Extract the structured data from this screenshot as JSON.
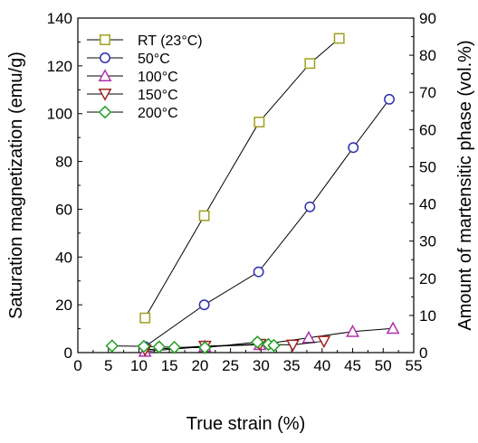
{
  "chart_data": {
    "type": "scatter",
    "xlabel": "True strain  (%)",
    "ylabel": "Saturation magnetization  (emu/g)",
    "y2label": "Amount of martensitic phase  (vol.%)",
    "xlim": [
      0,
      55
    ],
    "ylim": [
      0,
      140
    ],
    "y2lim": [
      0,
      90
    ],
    "xticks": [
      "0",
      "5",
      "10",
      "15",
      "20",
      "25",
      "30",
      "35",
      "40",
      "45",
      "50",
      "55"
    ],
    "yticks": [
      "0",
      "20",
      "40",
      "60",
      "80",
      "100",
      "120",
      "140"
    ],
    "y2ticks": [
      "0",
      "10",
      "20",
      "30",
      "40",
      "50",
      "60",
      "70",
      "80",
      "90"
    ],
    "grid": false,
    "legend_position": "top-left",
    "series": [
      {
        "name": "RT (23°C)",
        "color": "#a0a020",
        "marker": "square",
        "x": [
          11,
          20.7,
          29.7,
          38,
          42.8
        ],
        "y": [
          14.5,
          57.3,
          96.5,
          121,
          131.5
        ]
      },
      {
        "name": "50°C",
        "color": "#3030b0",
        "marker": "circle",
        "x": [
          11,
          20.7,
          29.6,
          38,
          45.1,
          51
        ],
        "y": [
          2.5,
          20,
          33.8,
          61,
          85.8,
          106
        ]
      },
      {
        "name": "100°C",
        "color": "#b030b0",
        "marker": "triangle-up",
        "x": [
          11,
          20.8,
          29.8,
          37.8,
          45,
          51.6
        ],
        "y": [
          0.5,
          2.5,
          3.3,
          6.2,
          8.8,
          10.1
        ]
      },
      {
        "name": "150°C",
        "color": "#a02020",
        "marker": "triangle-down",
        "x": [
          11,
          20.8,
          29.8,
          35.2,
          40.3
        ],
        "y": [
          1.2,
          2.7,
          3.5,
          3.2,
          4.8
        ]
      },
      {
        "name": "200°C",
        "color": "#20a020",
        "marker": "diamond",
        "x": [
          5.6,
          10.8,
          13.3,
          15.8,
          20.8,
          29.4,
          31.2,
          32.1
        ],
        "y": [
          2.8,
          2.6,
          2.4,
          2.2,
          2.1,
          4.4,
          3.4,
          3.0
        ]
      }
    ]
  }
}
